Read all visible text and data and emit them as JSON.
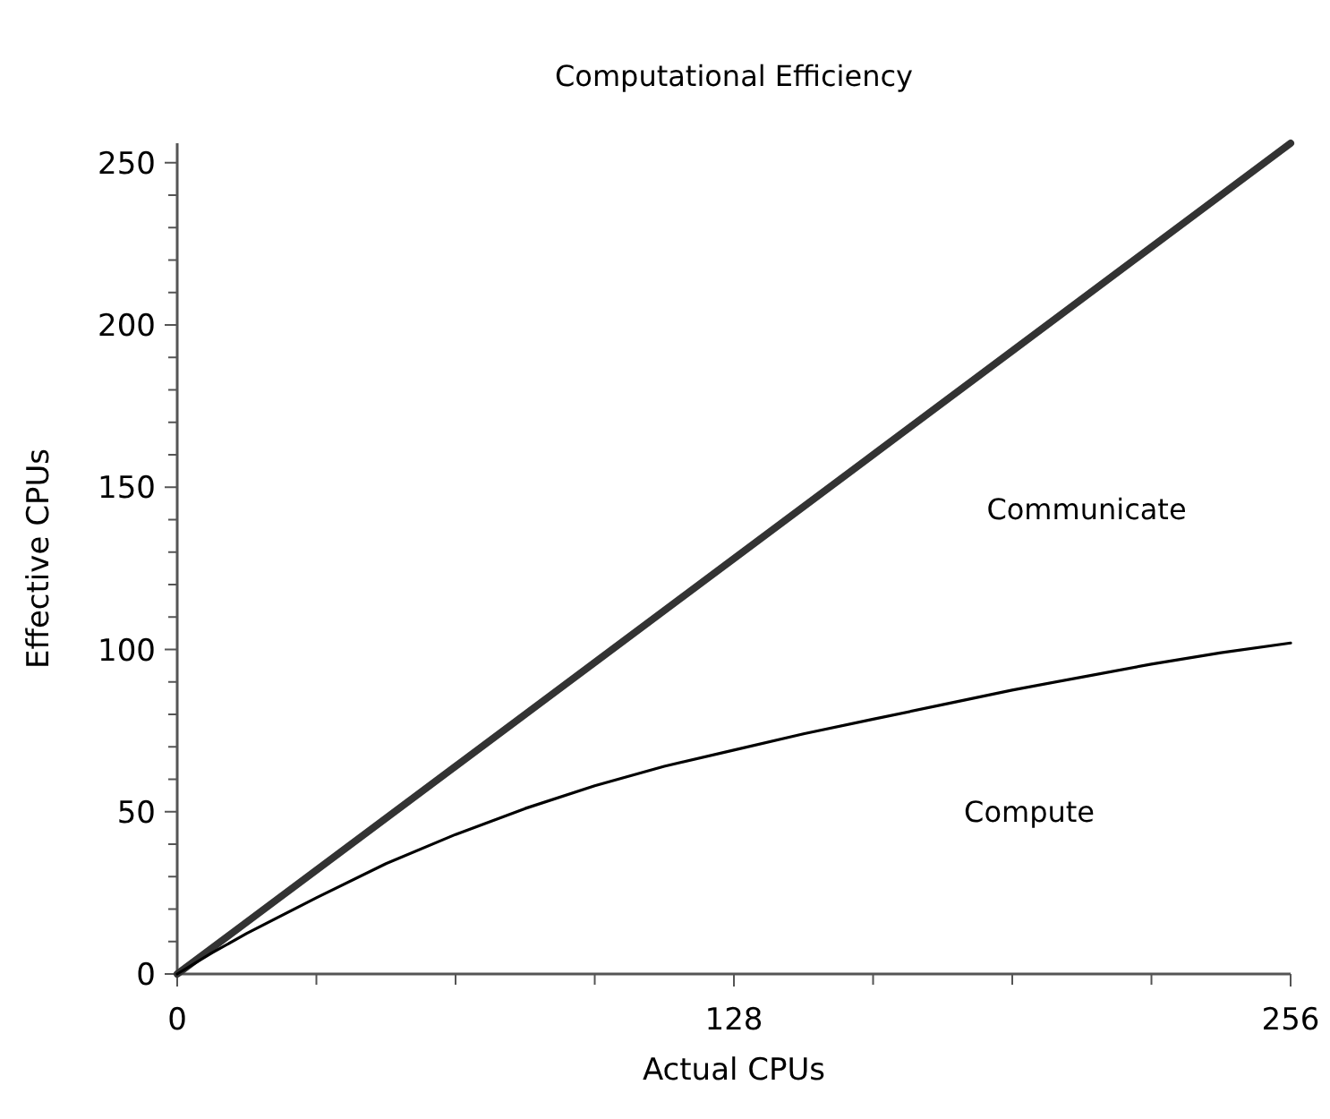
{
  "chart_data": {
    "type": "line",
    "title": "Computational Efficiency",
    "xlabel": "Actual CPUs",
    "ylabel": "Effective CPUs",
    "xlim": [
      0,
      256
    ],
    "ylim": [
      0,
      256
    ],
    "xticks": [
      0,
      {
        "value": 32,
        "label": null
      },
      {
        "value": 64,
        "label": null
      },
      {
        "value": 96,
        "label": null
      },
      128,
      {
        "value": 160,
        "label": null
      },
      {
        "value": 192,
        "label": null
      },
      {
        "value": 224,
        "label": null
      },
      256
    ],
    "yticks": [
      0,
      {
        "value": 10,
        "label": null
      },
      {
        "value": 20,
        "label": null
      },
      {
        "value": 30,
        "label": null
      },
      {
        "value": 40,
        "label": null
      },
      50,
      {
        "value": 60,
        "label": null
      },
      {
        "value": 70,
        "label": null
      },
      {
        "value": 80,
        "label": null
      },
      {
        "value": 90,
        "label": null
      },
      100,
      {
        "value": 110,
        "label": null
      },
      {
        "value": 120,
        "label": null
      },
      {
        "value": 130,
        "label": null
      },
      {
        "value": 140,
        "label": null
      },
      150,
      {
        "value": 160,
        "label": null
      },
      {
        "value": 170,
        "label": null
      },
      {
        "value": 180,
        "label": null
      },
      {
        "value": 190,
        "label": null
      },
      200,
      {
        "value": 210,
        "label": null
      },
      {
        "value": 220,
        "label": null
      },
      {
        "value": 230,
        "label": null
      },
      {
        "value": 240,
        "label": null
      },
      250
    ],
    "grid": false,
    "marker": "none",
    "line_style": "solid",
    "series": [
      {
        "color": "#333333",
        "x": [
          0,
          32,
          64,
          96,
          128,
          160,
          192,
          224,
          256
        ],
        "values": [
          0,
          32,
          64,
          96,
          128,
          160,
          192,
          224,
          256
        ]
      },
      {
        "color": "#000000",
        "x": [
          0,
          8,
          16,
          32,
          48,
          64,
          80,
          96,
          112,
          128,
          144,
          160,
          176,
          192,
          208,
          224,
          240,
          256
        ],
        "values": [
          0,
          6.5,
          12.5,
          23.5,
          34,
          43,
          51,
          58,
          64,
          69,
          74,
          78.5,
          83,
          87.5,
          91.5,
          95.5,
          99,
          102
        ]
      }
    ],
    "annotations": [
      "Communicate",
      "Compute"
    ]
  }
}
